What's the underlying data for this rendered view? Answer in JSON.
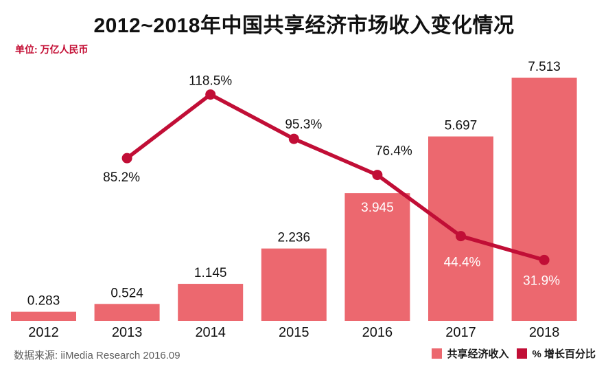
{
  "page": {
    "title": "2012~2018年中国共享经济市场收入变化情况",
    "unit_label": "单位: 万亿人民币",
    "source": "数据来源: iiMedia Research 2016.09"
  },
  "legend": {
    "position": "bottom-right",
    "items": [
      {
        "label": "共享经济收入",
        "color": "#ec686f",
        "marker": "square"
      },
      {
        "label": "% 增长百分比",
        "color": "#c10e36",
        "marker": "square"
      }
    ]
  },
  "colors": {
    "bar": "#ec686f",
    "line": "#c10e36",
    "label_dark": "#111111",
    "label_light": "#ffffff",
    "accent_text": "#c40f35",
    "source_text": "#606060"
  },
  "chart_data": {
    "type": "bar+line",
    "title": "2012~2018年中国共享经济市场收入变化情况",
    "unit": "万亿人民币",
    "categories": [
      "2012",
      "2013",
      "2014",
      "2015",
      "2016",
      "2017",
      "2018"
    ],
    "grid": false,
    "legend_position": "bottom-right",
    "ylim_bar": [
      0,
      8.2
    ],
    "ylim_line_pct": [
      0,
      140
    ],
    "series": [
      {
        "name": "共享经济收入",
        "type": "bar",
        "values": [
          0.283,
          0.524,
          1.145,
          2.236,
          3.945,
          5.697,
          7.513
        ],
        "value_labels": [
          "0.283",
          "0.524",
          "1.145",
          "2.236",
          "3.945",
          "5.697",
          "7.513"
        ],
        "label_styles": [
          {
            "pos": "above",
            "color": "dark"
          },
          {
            "pos": "above",
            "color": "dark"
          },
          {
            "pos": "above",
            "color": "dark"
          },
          {
            "pos": "above",
            "color": "dark"
          },
          {
            "pos": "inside",
            "color": "light"
          },
          {
            "pos": "above",
            "color": "dark"
          },
          {
            "pos": "above",
            "color": "dark"
          }
        ]
      },
      {
        "name": "% 增长百分比",
        "type": "line",
        "values": [
          null,
          85.2,
          118.5,
          95.3,
          76.4,
          44.4,
          31.9
        ],
        "value_labels": [
          null,
          "85.2%",
          "118.5%",
          "95.3%",
          "76.4%",
          "44.4%",
          "31.9%"
        ],
        "label_hints": [
          null,
          {
            "dx": -8,
            "dy": 34,
            "color": "dark"
          },
          {
            "dx": 0,
            "dy": -14,
            "color": "dark"
          },
          {
            "dx": 14,
            "dy": -15,
            "color": "dark"
          },
          {
            "dx": 24,
            "dy": -29,
            "color": "dark"
          },
          {
            "dx": 2,
            "dy": 44,
            "color": "light"
          },
          {
            "dx": -4,
            "dy": 36,
            "color": "light"
          }
        ]
      }
    ]
  }
}
